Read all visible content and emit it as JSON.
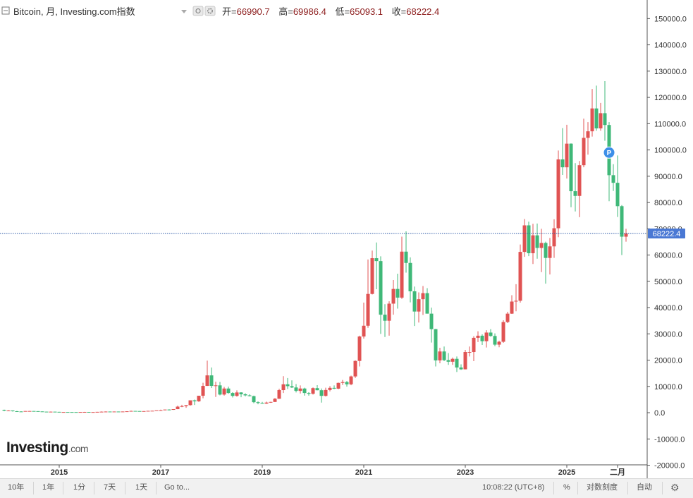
{
  "header": {
    "title": "Bitcoin, 月, Investing.com指数",
    "open_label": "开=",
    "open_value": "66990.7",
    "high_label": "高=",
    "high_value": "69986.4",
    "low_label": "低=",
    "low_value": "65093.1",
    "close_label": "收=",
    "close_value": "68222.4"
  },
  "colors": {
    "up": "#e05353",
    "down": "#3fb878",
    "price_line": "#2f5ba8",
    "price_badge": "#4a78d4",
    "text": "#333333",
    "value_text": "#8b1a1a",
    "marker": "#3d8fe8"
  },
  "price_marker": {
    "label": "P",
    "x": "2025-11",
    "y": 99000
  },
  "logo": {
    "brand": "Investing",
    "suffix": ".com"
  },
  "chart_data": {
    "type": "candlestick",
    "series_name": "Bitcoin",
    "interval": "month",
    "y_range": [
      -22000,
      156000
    ],
    "y_ticks": [
      -20000,
      -10000,
      0,
      10000,
      20000,
      30000,
      40000,
      50000,
      60000,
      70000,
      80000,
      90000,
      100000,
      110000,
      120000,
      130000,
      140000,
      150000
    ],
    "y_tick_labels": [
      "-20000.0",
      "-10000.0",
      "0.0",
      "10000.0",
      "20000.0",
      "30000.0",
      "40000.0",
      "50000.0",
      "60000.0",
      "70000.0",
      "80000.0",
      "90000.0",
      "100000.0",
      "110000.0",
      "120000.0",
      "130000.0",
      "140000.0",
      "150000.0"
    ],
    "x_ticks": [
      "2015-01",
      "2017-01",
      "2019-01",
      "2021-01",
      "2023-01",
      "2025-01",
      "2026-01"
    ],
    "x_tick_labels": [
      "2015",
      "2017",
      "2019",
      "2021",
      "2023",
      "2025",
      "二月"
    ],
    "last_price": 68222.4,
    "last_price_label": "68222.4",
    "grid": false,
    "candles": [
      {
        "d": "2013-12",
        "o": 1100,
        "h": 1150,
        "l": 550,
        "c": 800
      },
      {
        "d": "2014-01",
        "o": 800,
        "h": 1000,
        "l": 750,
        "c": 850
      },
      {
        "d": "2014-02",
        "o": 850,
        "h": 870,
        "l": 420,
        "c": 550
      },
      {
        "d": "2014-03",
        "o": 550,
        "h": 700,
        "l": 440,
        "c": 460
      },
      {
        "d": "2014-04",
        "o": 460,
        "h": 540,
        "l": 340,
        "c": 445
      },
      {
        "d": "2014-05",
        "o": 445,
        "h": 630,
        "l": 430,
        "c": 630
      },
      {
        "d": "2014-06",
        "o": 630,
        "h": 680,
        "l": 560,
        "c": 640
      },
      {
        "d": "2014-07",
        "o": 640,
        "h": 660,
        "l": 570,
        "c": 585
      },
      {
        "d": "2014-08",
        "o": 585,
        "h": 600,
        "l": 440,
        "c": 480
      },
      {
        "d": "2014-09",
        "o": 480,
        "h": 500,
        "l": 360,
        "c": 390
      },
      {
        "d": "2014-10",
        "o": 390,
        "h": 420,
        "l": 280,
        "c": 340
      },
      {
        "d": "2014-11",
        "o": 340,
        "h": 460,
        "l": 320,
        "c": 380
      },
      {
        "d": "2014-12",
        "o": 380,
        "h": 400,
        "l": 300,
        "c": 320
      },
      {
        "d": "2015-01",
        "o": 320,
        "h": 320,
        "l": 160,
        "c": 220
      },
      {
        "d": "2015-02",
        "o": 220,
        "h": 260,
        "l": 210,
        "c": 255
      },
      {
        "d": "2015-03",
        "o": 255,
        "h": 300,
        "l": 240,
        "c": 245
      },
      {
        "d": "2015-04",
        "o": 245,
        "h": 260,
        "l": 210,
        "c": 235
      },
      {
        "d": "2015-05",
        "o": 235,
        "h": 245,
        "l": 225,
        "c": 230
      },
      {
        "d": "2015-06",
        "o": 230,
        "h": 270,
        "l": 220,
        "c": 265
      },
      {
        "d": "2015-07",
        "o": 265,
        "h": 315,
        "l": 255,
        "c": 285
      },
      {
        "d": "2015-08",
        "o": 285,
        "h": 285,
        "l": 200,
        "c": 230
      },
      {
        "d": "2015-09",
        "o": 230,
        "h": 245,
        "l": 225,
        "c": 238
      },
      {
        "d": "2015-10",
        "o": 238,
        "h": 330,
        "l": 235,
        "c": 315
      },
      {
        "d": "2015-11",
        "o": 315,
        "h": 500,
        "l": 300,
        "c": 378
      },
      {
        "d": "2015-12",
        "o": 378,
        "h": 470,
        "l": 350,
        "c": 430
      },
      {
        "d": "2016-01",
        "o": 430,
        "h": 460,
        "l": 350,
        "c": 370
      },
      {
        "d": "2016-02",
        "o": 370,
        "h": 440,
        "l": 365,
        "c": 435
      },
      {
        "d": "2016-03",
        "o": 435,
        "h": 440,
        "l": 400,
        "c": 415
      },
      {
        "d": "2016-04",
        "o": 415,
        "h": 465,
        "l": 410,
        "c": 450
      },
      {
        "d": "2016-05",
        "o": 450,
        "h": 550,
        "l": 440,
        "c": 530
      },
      {
        "d": "2016-06",
        "o": 530,
        "h": 780,
        "l": 520,
        "c": 670
      },
      {
        "d": "2016-07",
        "o": 670,
        "h": 680,
        "l": 600,
        "c": 625
      },
      {
        "d": "2016-08",
        "o": 625,
        "h": 630,
        "l": 530,
        "c": 575
      },
      {
        "d": "2016-09",
        "o": 575,
        "h": 615,
        "l": 570,
        "c": 608
      },
      {
        "d": "2016-10",
        "o": 608,
        "h": 720,
        "l": 600,
        "c": 700
      },
      {
        "d": "2016-11",
        "o": 700,
        "h": 755,
        "l": 690,
        "c": 742
      },
      {
        "d": "2016-12",
        "o": 742,
        "h": 970,
        "l": 740,
        "c": 964
      },
      {
        "d": "2017-01",
        "o": 964,
        "h": 1150,
        "l": 750,
        "c": 970
      },
      {
        "d": "2017-02",
        "o": 970,
        "h": 1200,
        "l": 920,
        "c": 1190
      },
      {
        "d": "2017-03",
        "o": 1190,
        "h": 1300,
        "l": 890,
        "c": 1080
      },
      {
        "d": "2017-04",
        "o": 1080,
        "h": 1350,
        "l": 1070,
        "c": 1350
      },
      {
        "d": "2017-05",
        "o": 1350,
        "h": 2700,
        "l": 1330,
        "c": 2300
      },
      {
        "d": "2017-06",
        "o": 2300,
        "h": 3000,
        "l": 2100,
        "c": 2500
      },
      {
        "d": "2017-07",
        "o": 2500,
        "h": 2900,
        "l": 1850,
        "c": 2870
      },
      {
        "d": "2017-08",
        "o": 2870,
        "h": 4700,
        "l": 2700,
        "c": 4700
      },
      {
        "d": "2017-09",
        "o": 4700,
        "h": 4980,
        "l": 2950,
        "c": 4340
      },
      {
        "d": "2017-10",
        "o": 4340,
        "h": 6450,
        "l": 4100,
        "c": 6450
      },
      {
        "d": "2017-11",
        "o": 6450,
        "h": 11400,
        "l": 5500,
        "c": 10200
      },
      {
        "d": "2017-12",
        "o": 10200,
        "h": 19800,
        "l": 10200,
        "c": 14200
      },
      {
        "d": "2018-01",
        "o": 14200,
        "h": 17200,
        "l": 9400,
        "c": 10200
      },
      {
        "d": "2018-02",
        "o": 10200,
        "h": 11800,
        "l": 6000,
        "c": 10400
      },
      {
        "d": "2018-03",
        "o": 10400,
        "h": 11700,
        "l": 6600,
        "c": 6900
      },
      {
        "d": "2018-04",
        "o": 6900,
        "h": 9800,
        "l": 6500,
        "c": 9200
      },
      {
        "d": "2018-05",
        "o": 9200,
        "h": 9900,
        "l": 7200,
        "c": 7500
      },
      {
        "d": "2018-06",
        "o": 7500,
        "h": 7800,
        "l": 5800,
        "c": 6400
      },
      {
        "d": "2018-07",
        "o": 6400,
        "h": 8500,
        "l": 6100,
        "c": 7700
      },
      {
        "d": "2018-08",
        "o": 7700,
        "h": 7800,
        "l": 5900,
        "c": 7000
      },
      {
        "d": "2018-09",
        "o": 7000,
        "h": 7400,
        "l": 6200,
        "c": 6600
      },
      {
        "d": "2018-10",
        "o": 6600,
        "h": 7000,
        "l": 6200,
        "c": 6300
      },
      {
        "d": "2018-11",
        "o": 6300,
        "h": 6500,
        "l": 3600,
        "c": 4000
      },
      {
        "d": "2018-12",
        "o": 4000,
        "h": 4300,
        "l": 3200,
        "c": 3700
      },
      {
        "d": "2019-01",
        "o": 3700,
        "h": 4100,
        "l": 3400,
        "c": 3450
      },
      {
        "d": "2019-02",
        "o": 3450,
        "h": 4200,
        "l": 3350,
        "c": 3850
      },
      {
        "d": "2019-03",
        "o": 3850,
        "h": 4150,
        "l": 3750,
        "c": 4100
      },
      {
        "d": "2019-04",
        "o": 4100,
        "h": 5600,
        "l": 4050,
        "c": 5300
      },
      {
        "d": "2019-05",
        "o": 5300,
        "h": 9100,
        "l": 5300,
        "c": 8600
      },
      {
        "d": "2019-06",
        "o": 8600,
        "h": 13900,
        "l": 7500,
        "c": 10800
      },
      {
        "d": "2019-07",
        "o": 10800,
        "h": 13200,
        "l": 9000,
        "c": 10100
      },
      {
        "d": "2019-08",
        "o": 10100,
        "h": 12300,
        "l": 9400,
        "c": 9600
      },
      {
        "d": "2019-09",
        "o": 9600,
        "h": 10900,
        "l": 7700,
        "c": 8300
      },
      {
        "d": "2019-10",
        "o": 8300,
        "h": 10400,
        "l": 7300,
        "c": 9200
      },
      {
        "d": "2019-11",
        "o": 9200,
        "h": 9500,
        "l": 6500,
        "c": 7500
      },
      {
        "d": "2019-12",
        "o": 7500,
        "h": 7800,
        "l": 6500,
        "c": 7200
      },
      {
        "d": "2020-01",
        "o": 7200,
        "h": 9600,
        "l": 6900,
        "c": 9350
      },
      {
        "d": "2020-02",
        "o": 9350,
        "h": 10500,
        "l": 8500,
        "c": 8550
      },
      {
        "d": "2020-03",
        "o": 8550,
        "h": 9200,
        "l": 3850,
        "c": 6400
      },
      {
        "d": "2020-04",
        "o": 6400,
        "h": 9500,
        "l": 6150,
        "c": 8650
      },
      {
        "d": "2020-05",
        "o": 8650,
        "h": 10100,
        "l": 8100,
        "c": 9450
      },
      {
        "d": "2020-06",
        "o": 9450,
        "h": 10400,
        "l": 8950,
        "c": 9150
      },
      {
        "d": "2020-07",
        "o": 9150,
        "h": 11450,
        "l": 8950,
        "c": 11350
      },
      {
        "d": "2020-08",
        "o": 11350,
        "h": 12450,
        "l": 10550,
        "c": 11650
      },
      {
        "d": "2020-09",
        "o": 11650,
        "h": 12050,
        "l": 9900,
        "c": 10800
      },
      {
        "d": "2020-10",
        "o": 10800,
        "h": 14100,
        "l": 10450,
        "c": 13800
      },
      {
        "d": "2020-11",
        "o": 13800,
        "h": 19900,
        "l": 13200,
        "c": 19700
      },
      {
        "d": "2020-12",
        "o": 19700,
        "h": 29300,
        "l": 17600,
        "c": 29000
      },
      {
        "d": "2021-01",
        "o": 29000,
        "h": 41900,
        "l": 28200,
        "c": 33100
      },
      {
        "d": "2021-02",
        "o": 33100,
        "h": 58300,
        "l": 32300,
        "c": 45200
      },
      {
        "d": "2021-03",
        "o": 45200,
        "h": 61700,
        "l": 45000,
        "c": 58800
      },
      {
        "d": "2021-04",
        "o": 58800,
        "h": 64800,
        "l": 47000,
        "c": 57700
      },
      {
        "d": "2021-05",
        "o": 57700,
        "h": 59500,
        "l": 30000,
        "c": 37300
      },
      {
        "d": "2021-06",
        "o": 37300,
        "h": 41300,
        "l": 28800,
        "c": 35000
      },
      {
        "d": "2021-07",
        "o": 35000,
        "h": 42400,
        "l": 29300,
        "c": 41500
      },
      {
        "d": "2021-08",
        "o": 41500,
        "h": 50500,
        "l": 37300,
        "c": 47100
      },
      {
        "d": "2021-09",
        "o": 47100,
        "h": 52900,
        "l": 39600,
        "c": 43800
      },
      {
        "d": "2021-10",
        "o": 43800,
        "h": 67000,
        "l": 43300,
        "c": 61300
      },
      {
        "d": "2021-11",
        "o": 61300,
        "h": 69000,
        "l": 53300,
        "c": 57000
      },
      {
        "d": "2021-12",
        "o": 57000,
        "h": 59100,
        "l": 42000,
        "c": 46200
      },
      {
        "d": "2022-01",
        "o": 46200,
        "h": 48000,
        "l": 33000,
        "c": 38500
      },
      {
        "d": "2022-02",
        "o": 38500,
        "h": 45800,
        "l": 34300,
        "c": 43200
      },
      {
        "d": "2022-03",
        "o": 43200,
        "h": 48200,
        "l": 37200,
        "c": 45500
      },
      {
        "d": "2022-04",
        "o": 45500,
        "h": 47400,
        "l": 37700,
        "c": 37700
      },
      {
        "d": "2022-05",
        "o": 37700,
        "h": 40000,
        "l": 26700,
        "c": 31800
      },
      {
        "d": "2022-06",
        "o": 31800,
        "h": 31900,
        "l": 17600,
        "c": 19900
      },
      {
        "d": "2022-07",
        "o": 19900,
        "h": 24700,
        "l": 18800,
        "c": 23300
      },
      {
        "d": "2022-08",
        "o": 23300,
        "h": 25200,
        "l": 19600,
        "c": 20000
      },
      {
        "d": "2022-09",
        "o": 20000,
        "h": 22700,
        "l": 18200,
        "c": 19400
      },
      {
        "d": "2022-10",
        "o": 19400,
        "h": 21000,
        "l": 18200,
        "c": 20500
      },
      {
        "d": "2022-11",
        "o": 20500,
        "h": 21400,
        "l": 15500,
        "c": 17200
      },
      {
        "d": "2022-12",
        "o": 17200,
        "h": 18400,
        "l": 16300,
        "c": 16500
      },
      {
        "d": "2023-01",
        "o": 16500,
        "h": 23900,
        "l": 16500,
        "c": 23100
      },
      {
        "d": "2023-02",
        "o": 23100,
        "h": 25200,
        "l": 21400,
        "c": 23100
      },
      {
        "d": "2023-03",
        "o": 23100,
        "h": 29100,
        "l": 19600,
        "c": 28500
      },
      {
        "d": "2023-04",
        "o": 28500,
        "h": 31000,
        "l": 26900,
        "c": 29300
      },
      {
        "d": "2023-05",
        "o": 29300,
        "h": 29800,
        "l": 25800,
        "c": 27200
      },
      {
        "d": "2023-06",
        "o": 27200,
        "h": 31400,
        "l": 24800,
        "c": 30500
      },
      {
        "d": "2023-07",
        "o": 30500,
        "h": 31800,
        "l": 28900,
        "c": 29200
      },
      {
        "d": "2023-08",
        "o": 29200,
        "h": 30200,
        "l": 25300,
        "c": 25900
      },
      {
        "d": "2023-09",
        "o": 25900,
        "h": 27400,
        "l": 24900,
        "c": 27000
      },
      {
        "d": "2023-10",
        "o": 27000,
        "h": 35200,
        "l": 26600,
        "c": 34500
      },
      {
        "d": "2023-11",
        "o": 34500,
        "h": 38400,
        "l": 34100,
        "c": 37700
      },
      {
        "d": "2023-12",
        "o": 37700,
        "h": 44700,
        "l": 37600,
        "c": 42300
      },
      {
        "d": "2024-01",
        "o": 42300,
        "h": 48900,
        "l": 38600,
        "c": 42600
      },
      {
        "d": "2024-02",
        "o": 42600,
        "h": 64000,
        "l": 41900,
        "c": 61200
      },
      {
        "d": "2024-03",
        "o": 61200,
        "h": 73700,
        "l": 59300,
        "c": 71300
      },
      {
        "d": "2024-04",
        "o": 71300,
        "h": 72700,
        "l": 59600,
        "c": 60700
      },
      {
        "d": "2024-05",
        "o": 60700,
        "h": 71900,
        "l": 56600,
        "c": 67500
      },
      {
        "d": "2024-06",
        "o": 67500,
        "h": 72000,
        "l": 58600,
        "c": 62700
      },
      {
        "d": "2024-07",
        "o": 62700,
        "h": 70000,
        "l": 53500,
        "c": 64600
      },
      {
        "d": "2024-08",
        "o": 64600,
        "h": 65100,
        "l": 49100,
        "c": 58900
      },
      {
        "d": "2024-09",
        "o": 58900,
        "h": 66500,
        "l": 52600,
        "c": 63300
      },
      {
        "d": "2024-10",
        "o": 63300,
        "h": 73600,
        "l": 58900,
        "c": 70200
      },
      {
        "d": "2024-11",
        "o": 70200,
        "h": 99800,
        "l": 66800,
        "c": 96400
      },
      {
        "d": "2024-12",
        "o": 96400,
        "h": 108300,
        "l": 90500,
        "c": 93400
      },
      {
        "d": "2025-01",
        "o": 93400,
        "h": 109600,
        "l": 89100,
        "c": 102400
      },
      {
        "d": "2025-02",
        "o": 102400,
        "h": 102500,
        "l": 78200,
        "c": 84300
      },
      {
        "d": "2025-03",
        "o": 84300,
        "h": 95000,
        "l": 76600,
        "c": 82500
      },
      {
        "d": "2025-04",
        "o": 82500,
        "h": 95800,
        "l": 74400,
        "c": 94200
      },
      {
        "d": "2025-05",
        "o": 94200,
        "h": 111900,
        "l": 93400,
        "c": 104600
      },
      {
        "d": "2025-06",
        "o": 104600,
        "h": 110600,
        "l": 98200,
        "c": 107100
      },
      {
        "d": "2025-07",
        "o": 107100,
        "h": 123200,
        "l": 105100,
        "c": 115800
      },
      {
        "d": "2025-08",
        "o": 115800,
        "h": 124500,
        "l": 107300,
        "c": 108200
      },
      {
        "d": "2025-09",
        "o": 108200,
        "h": 117900,
        "l": 107300,
        "c": 114000
      },
      {
        "d": "2025-10",
        "o": 114000,
        "h": 126200,
        "l": 103500,
        "c": 109500
      },
      {
        "d": "2025-11",
        "o": 109500,
        "h": 110600,
        "l": 80500,
        "c": 90400
      },
      {
        "d": "2025-12",
        "o": 90400,
        "h": 94600,
        "l": 84400,
        "c": 87500
      },
      {
        "d": "2026-01",
        "o": 87500,
        "h": 97900,
        "l": 74500,
        "c": 78600
      },
      {
        "d": "2026-02",
        "o": 78600,
        "h": 79000,
        "l": 60000,
        "c": 66990.7
      },
      {
        "d": "2026-03",
        "o": 66990.7,
        "h": 69986.4,
        "l": 65093.1,
        "c": 68222.4
      }
    ]
  },
  "bottom_bar": {
    "range_10y": "10年",
    "range_1y": "1年",
    "range_1m": "1分",
    "range_7d": "7天",
    "range_1d": "1天",
    "goto": "Go to...",
    "time": "10:08:22 (UTC+8)",
    "percent": "%",
    "log_scale": "对数刻度",
    "auto": "自动",
    "settings_icon": "gear-icon"
  }
}
